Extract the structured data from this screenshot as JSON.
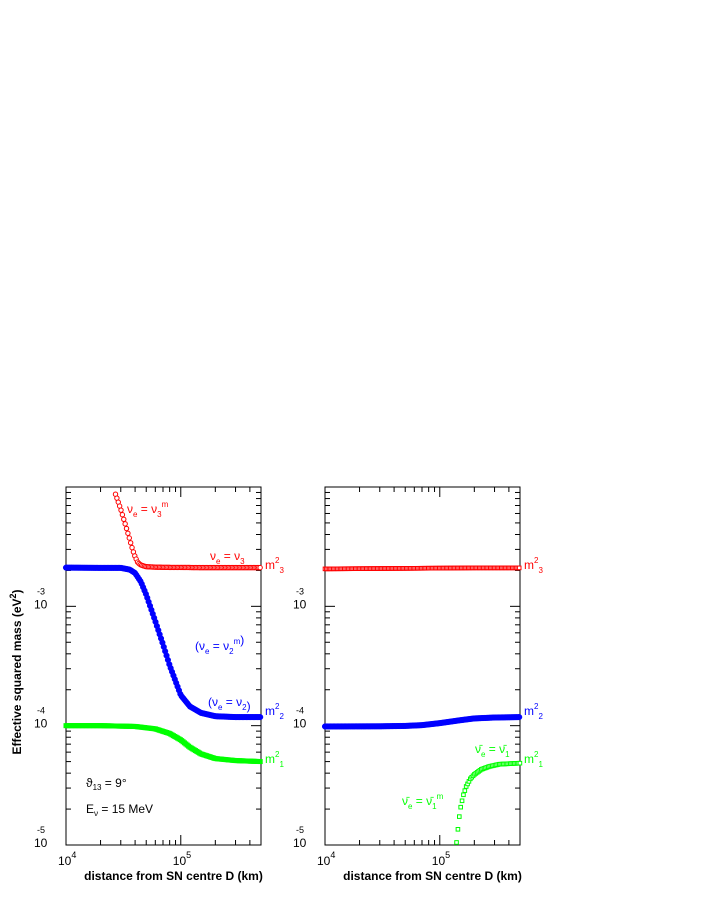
{
  "ylabel": "Effective squared mass (eV",
  "ylabel_sup": "2",
  "ylabel_close": ")",
  "chart_data": [
    {
      "type": "scatter",
      "panel": "left",
      "xlabel": "distance from SN centre  D (km)",
      "xscale": "log",
      "yscale": "log",
      "xlim": [
        10000,
        500000
      ],
      "ylim": [
        1e-05,
        0.01
      ],
      "x_ticks": [
        {
          "base": "10",
          "exp": "4",
          "value": 10000
        },
        {
          "base": "10",
          "exp": "5",
          "value": 100000
        }
      ],
      "y_ticks": [
        {
          "base": "10",
          "exp": "-5",
          "value": 1e-05
        },
        {
          "base": "10",
          "exp": "-4",
          "value": 0.0001
        },
        {
          "base": "10",
          "exp": "-3",
          "value": 0.001
        }
      ],
      "series": [
        {
          "color": "#ff0000",
          "marker": "open-circle",
          "x": [
            27000,
            30000,
            33000,
            36000,
            38000,
            40000,
            42000,
            44000,
            46000,
            50000,
            60000,
            80000,
            100000,
            150000,
            200000,
            300000,
            500000
          ],
          "y": [
            0.0087,
            0.0065,
            0.0048,
            0.0036,
            0.003,
            0.0026,
            0.00235,
            0.00225,
            0.0022,
            0.00215,
            0.00213,
            0.00212,
            0.00212,
            0.00211,
            0.00211,
            0.00211,
            0.00211
          ]
        },
        {
          "color": "#0000ff",
          "marker": "filled-circle",
          "x": [
            10000,
            20000,
            30000,
            36000,
            40000,
            45000,
            50000,
            60000,
            70000,
            80000,
            100000,
            120000,
            150000,
            200000,
            300000,
            500000
          ],
          "y": [
            0.00211,
            0.0021,
            0.0021,
            0.00203,
            0.0019,
            0.0016,
            0.00125,
            0.00075,
            0.00048,
            0.00032,
            0.00018,
            0.000145,
            0.000128,
            0.00012,
            0.000118,
            0.000118
          ]
        },
        {
          "color": "#00ff00",
          "marker": "filled-square",
          "x": [
            10000,
            20000,
            40000,
            60000,
            80000,
            100000,
            120000,
            150000,
            200000,
            300000,
            500000
          ],
          "y": [
            0.0001,
            0.0001,
            9.85e-05,
            9.4e-05,
            8.6e-05,
            7.6e-05,
            6.6e-05,
            5.8e-05,
            5.3e-05,
            5.1e-05,
            5e-05
          ]
        }
      ],
      "annotations": [
        {
          "text_pre": "ν",
          "sub": "e",
          "text_mid": " = ν",
          "sub2": "3",
          "sup2": "m",
          "color": "#ff0000"
        },
        {
          "text_pre": "ν",
          "sub": "e",
          "text_mid": " = ν",
          "sub2": "3",
          "sup2": "",
          "color": "#ff0000"
        },
        {
          "text_pre": "(ν",
          "sub": "e",
          "text_mid": " = ν",
          "sub2": "2",
          "sup2": "m",
          "post": ")",
          "color": "#0000ff"
        },
        {
          "text_pre": "(ν",
          "sub": "e",
          "text_mid": " = ν",
          "sub2": "2",
          "sup2": "",
          "post": ")",
          "color": "#0000ff"
        }
      ],
      "right_labels": [
        {
          "text": "m",
          "sup": "2",
          "sub": "3",
          "color": "#ff0000"
        },
        {
          "text": "m",
          "sup": "2",
          "sub": "2",
          "color": "#0000ff"
        },
        {
          "text": "m",
          "sup": "2",
          "sub": "1",
          "color": "#00ff00"
        }
      ],
      "info_lines": [
        {
          "text": "ϑ",
          "sub": "13",
          "rest": " = 9°"
        },
        {
          "text": "E",
          "sub": "ν",
          "rest": " = 15 MeV"
        }
      ]
    },
    {
      "type": "scatter",
      "panel": "right",
      "xlabel": "distance from SN centre  D (km)",
      "xscale": "log",
      "yscale": "log",
      "xlim": [
        10000,
        500000
      ],
      "ylim": [
        1e-05,
        0.01
      ],
      "x_ticks": [
        {
          "base": "10",
          "exp": "4",
          "value": 10000
        },
        {
          "base": "10",
          "exp": "5",
          "value": 100000
        }
      ],
      "y_ticks": [
        {
          "base": "10",
          "exp": "-5",
          "value": 1e-05
        },
        {
          "base": "10",
          "exp": "-4",
          "value": 0.0001
        },
        {
          "base": "10",
          "exp": "-3",
          "value": 0.001
        }
      ],
      "series": [
        {
          "color": "#ff0000",
          "marker": "open-square",
          "x": [
            10000,
            50000,
            100000,
            200000,
            500000
          ],
          "y": [
            0.00206,
            0.00208,
            0.00209,
            0.0021,
            0.0021
          ]
        },
        {
          "color": "#0000ff",
          "marker": "filled-circle",
          "x": [
            10000,
            30000,
            50000,
            70000,
            100000,
            150000,
            200000,
            300000,
            500000
          ],
          "y": [
            9.85e-05,
            9.88e-05,
            9.95e-05,
            0.000101,
            0.000105,
            0.000111,
            0.000115,
            0.000117,
            0.000118
          ]
        },
        {
          "color": "#00ff00",
          "marker": "open-square",
          "x": [
            140000,
            145000,
            150000,
            160000,
            170000,
            185000,
            200000,
            230000,
            270000,
            330000,
            400000,
            500000
          ],
          "y": [
            1.05e-05,
            1.45e-05,
            1.95e-05,
            2.6e-05,
            3.1e-05,
            3.6e-05,
            3.9e-05,
            4.3e-05,
            4.55e-05,
            4.75e-05,
            4.8e-05,
            4.85e-05
          ]
        }
      ],
      "annotations": [
        {
          "text_pre": "ν̄",
          "sub": "e",
          "text_mid": " = ν̄",
          "sub2": "1",
          "sup2": "",
          "color": "#00ff00"
        },
        {
          "text_pre": "ν̄",
          "sub": "e",
          "text_mid": " = ν̄",
          "sub2": "1",
          "sup2": "m",
          "color": "#00ff00"
        }
      ],
      "right_labels": [
        {
          "text": "m",
          "sup": "2",
          "sub": "3",
          "color": "#ff0000"
        },
        {
          "text": "m",
          "sup": "2",
          "sub": "2",
          "color": "#0000ff"
        },
        {
          "text": "m",
          "sup": "2",
          "sub": "1",
          "color": "#00ff00"
        }
      ]
    }
  ]
}
